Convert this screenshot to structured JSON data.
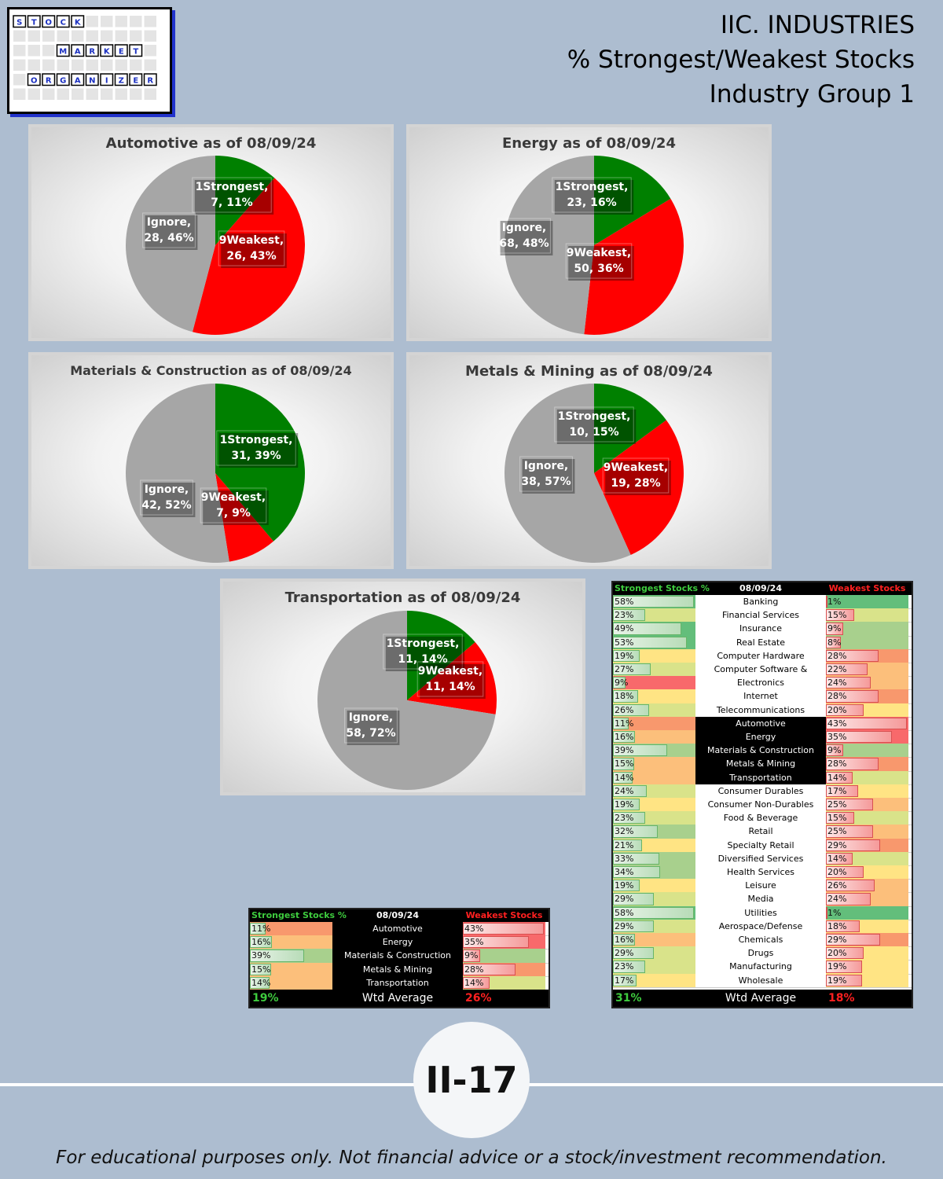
{
  "logo": {
    "row1": [
      "S",
      "T",
      "O",
      "C",
      "K"
    ],
    "row2": [
      "M",
      "A",
      "R",
      "K",
      "E",
      "T"
    ],
    "row3": [
      "O",
      "R",
      "G",
      "A",
      "N",
      "I",
      "Z",
      "E",
      "R"
    ]
  },
  "header": {
    "line1": "IIC. INDUSTRIES",
    "line2": "% Strongest/Weakest Stocks",
    "line3": "Industry Group 1"
  },
  "colors": {
    "strongest": "#008000",
    "weakest": "#ff0000",
    "ignore": "#a6a6a6"
  },
  "chart_data": [
    {
      "type": "pie",
      "title": "Automotive as of 08/09/24",
      "slices": [
        {
          "label": "1Strongest",
          "value": 7,
          "pct": "11%"
        },
        {
          "label": "9Weakest",
          "value": 26,
          "pct": "43%"
        },
        {
          "label": "Ignore",
          "value": 28,
          "pct": "46%"
        }
      ]
    },
    {
      "type": "pie",
      "title": "Energy as of 08/09/24",
      "slices": [
        {
          "label": "1Strongest",
          "value": 23,
          "pct": "16%"
        },
        {
          "label": "9Weakest",
          "value": 50,
          "pct": "36%"
        },
        {
          "label": "Ignore",
          "value": 68,
          "pct": "48%"
        }
      ]
    },
    {
      "type": "pie",
      "title": "Materials & Construction as of 08/09/24",
      "slices": [
        {
          "label": "1Strongest",
          "value": 31,
          "pct": "39%"
        },
        {
          "label": "9Weakest",
          "value": 7,
          "pct": "9%"
        },
        {
          "label": "Ignore",
          "value": 42,
          "pct": "52%"
        }
      ]
    },
    {
      "type": "pie",
      "title": "Metals & Mining as of 08/09/24",
      "slices": [
        {
          "label": "1Strongest",
          "value": 10,
          "pct": "15%"
        },
        {
          "label": "9Weakest",
          "value": 19,
          "pct": "28%"
        },
        {
          "label": "Ignore",
          "value": 38,
          "pct": "57%"
        }
      ]
    },
    {
      "type": "pie",
      "title": "Transportation as of 08/09/24",
      "slices": [
        {
          "label": "1Strongest",
          "value": 11,
          "pct": "14%"
        },
        {
          "label": "9Weakest",
          "value": 11,
          "pct": "14%"
        },
        {
          "label": "Ignore",
          "value": 58,
          "pct": "72%"
        }
      ]
    },
    {
      "type": "table",
      "columns": [
        "Strongest Stocks %",
        "08/09/24",
        "Weakest Stocks %"
      ],
      "rows": [
        [
          "11%",
          "Automotive",
          "43%"
        ],
        [
          "16%",
          "Energy",
          "35%"
        ],
        [
          "39%",
          "Materials & Construction",
          "9%"
        ],
        [
          "15%",
          "Metals & Mining",
          "28%"
        ],
        [
          "14%",
          "Transportation",
          "14%"
        ]
      ],
      "footer": [
        "19%",
        "Wtd Average",
        "26%"
      ]
    },
    {
      "type": "table",
      "columns": [
        "Strongest Stocks %",
        "08/09/24",
        "Weakest Stocks %"
      ],
      "rows": [
        [
          "58%",
          "Banking",
          "1%"
        ],
        [
          "23%",
          "Financial Services",
          "15%"
        ],
        [
          "49%",
          "Insurance",
          "9%"
        ],
        [
          "53%",
          "Real Estate",
          "8%"
        ],
        [
          "19%",
          "Computer Hardware",
          "28%"
        ],
        [
          "27%",
          "Computer Software & Services",
          "22%"
        ],
        [
          "9%",
          "Electronics",
          "24%"
        ],
        [
          "18%",
          "Internet",
          "28%"
        ],
        [
          "26%",
          "Telecommunications",
          "20%"
        ],
        [
          "11%",
          "Automotive",
          "43%"
        ],
        [
          "16%",
          "Energy",
          "35%"
        ],
        [
          "39%",
          "Materials & Construction",
          "9%"
        ],
        [
          "15%",
          "Metals & Mining",
          "28%"
        ],
        [
          "14%",
          "Transportation",
          "14%"
        ],
        [
          "24%",
          "Consumer Durables",
          "17%"
        ],
        [
          "19%",
          "Consumer Non-Durables",
          "25%"
        ],
        [
          "23%",
          "Food & Beverage",
          "15%"
        ],
        [
          "32%",
          "Retail",
          "25%"
        ],
        [
          "21%",
          "Specialty Retail",
          "29%"
        ],
        [
          "33%",
          "Diversified Services",
          "14%"
        ],
        [
          "34%",
          "Health Services",
          "20%"
        ],
        [
          "19%",
          "Leisure",
          "26%"
        ],
        [
          "29%",
          "Media",
          "24%"
        ],
        [
          "58%",
          "Utilities",
          "1%"
        ],
        [
          "29%",
          "Aerospace/Defense",
          "18%"
        ],
        [
          "16%",
          "Chemicals",
          "29%"
        ],
        [
          "29%",
          "Drugs",
          "20%"
        ],
        [
          "23%",
          "Manufacturing",
          "19%"
        ],
        [
          "17%",
          "Wholesale",
          "19%"
        ]
      ],
      "footer": [
        "31%",
        "Wtd Average",
        "18%"
      ]
    }
  ],
  "page_number": "II-17",
  "disclaimer": "For educational purposes only. Not financial advice or a stock/investment recommendation."
}
